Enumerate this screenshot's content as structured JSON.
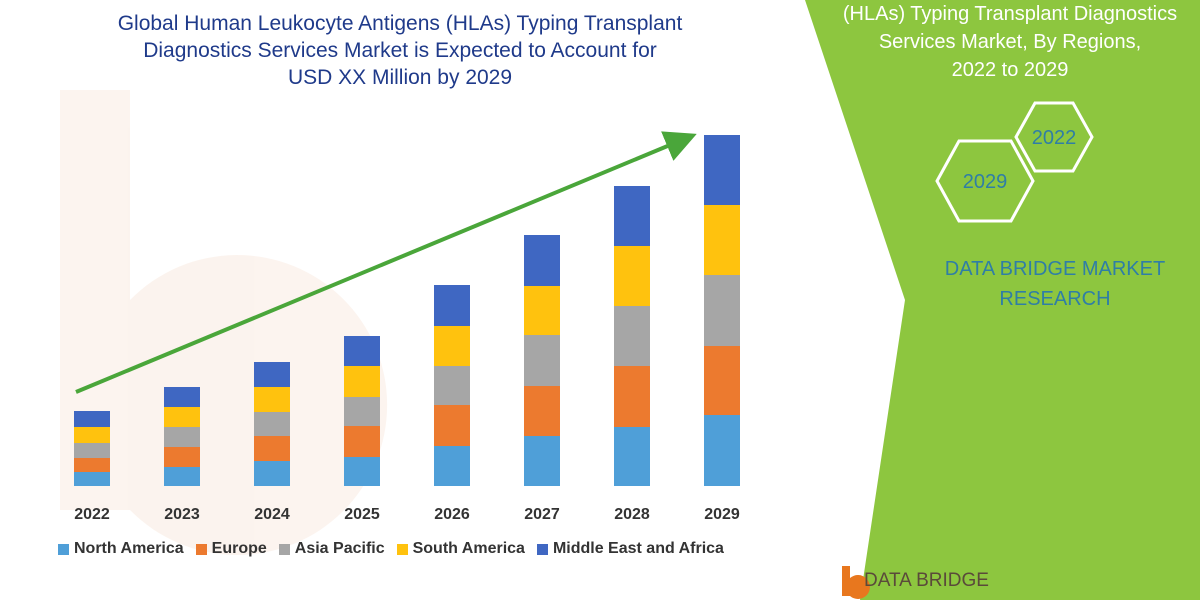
{
  "header": {
    "title_lines": [
      "Global Human Leukocyte Antigens (HLAs) Typing Transplant",
      "Diagnostics Services Market is Expected to Account for",
      "USD XX Million by 2029"
    ]
  },
  "side_panel": {
    "title_lines": [
      "(HLAs) Typing Transplant Diagnostics",
      "Services Market, By Regions,",
      "2022 to 2029"
    ],
    "hex_labels": [
      "2022",
      "2029"
    ],
    "brand_lines": [
      "DATA BRIDGE MARKET",
      "RESEARCH"
    ],
    "logo_text": "DATA BRIDGE",
    "panel_color": "#8dc63f"
  },
  "chart_data": {
    "type": "bar",
    "stacked": true,
    "categories": [
      "2022",
      "2023",
      "2024",
      "2025",
      "2026",
      "2027",
      "2028",
      "2029"
    ],
    "series": [
      {
        "name": "North America",
        "color": "#4f9fd8",
        "values": [
          14,
          19,
          25,
          29,
          40,
          50,
          59,
          71
        ]
      },
      {
        "name": "Europe",
        "color": "#ec7a2f",
        "values": [
          14,
          20,
          25,
          31,
          41,
          50,
          61,
          69
        ]
      },
      {
        "name": "Asia Pacific",
        "color": "#a6a6a6",
        "values": [
          15,
          20,
          24,
          29,
          39,
          51,
          60,
          71
        ]
      },
      {
        "name": "South America",
        "color": "#ffc20e",
        "values": [
          16,
          20,
          25,
          31,
          40,
          49,
          60,
          70
        ]
      },
      {
        "name": "Middle East and Africa",
        "color": "#3f67c2",
        "values": [
          16,
          20,
          25,
          30,
          41,
          51,
          60,
          70
        ]
      }
    ],
    "ylim": [
      0,
      360
    ],
    "trend_arrow": true,
    "legend_position": "bottom"
  }
}
